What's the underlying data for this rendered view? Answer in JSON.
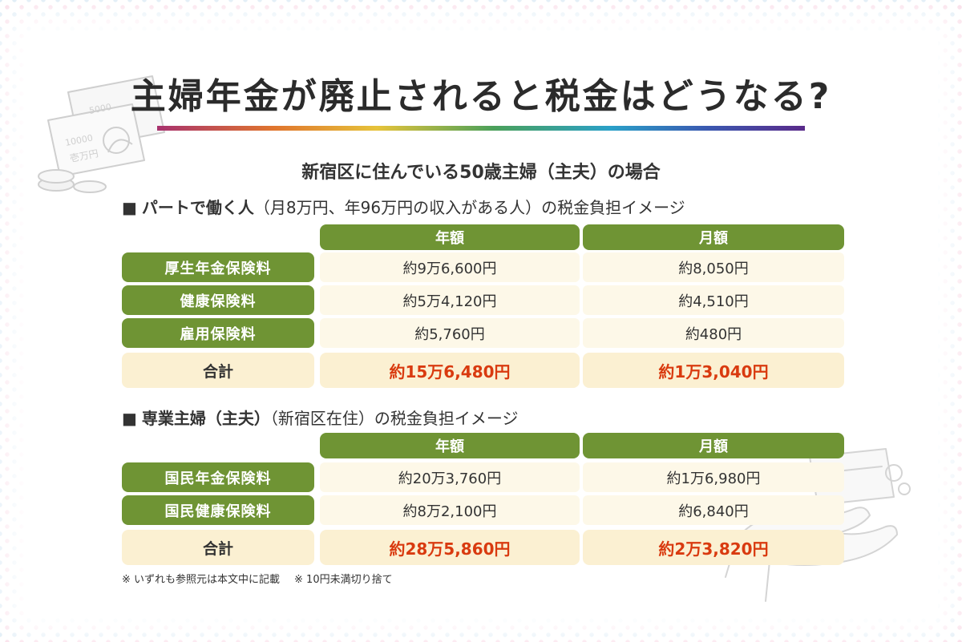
{
  "title": "主婦年金が廃止されると税金はどうなる?",
  "subtitle": "新宿区に住んでいる50歳主婦（主夫）の場合",
  "colors": {
    "green": "#6f9434",
    "cream": "#fdf8e8",
    "total_bg": "#fbf0d2",
    "total_text": "#d93a0f"
  },
  "sections": [
    {
      "marker": "■",
      "heading_bold": "パートで働く人",
      "heading_rest": "（月8万円、年96万円の収入がある人）の税金負担イメージ",
      "col_headers": [
        "年額",
        "月額"
      ],
      "rows": [
        {
          "label": "厚生年金保険料",
          "annual": "約9万6,600円",
          "monthly": "約8,050円"
        },
        {
          "label": "健康保険料",
          "annual": "約5万4,120円",
          "monthly": "約4,510円"
        },
        {
          "label": "雇用保険料",
          "annual": "約5,760円",
          "monthly": "約480円"
        }
      ],
      "total": {
        "label": "合計",
        "annual": "約15万6,480円",
        "monthly": "約1万3,040円"
      }
    },
    {
      "marker": "■",
      "heading_bold": "専業主婦（主夫）",
      "heading_rest": "（新宿区在住）の税金負担イメージ",
      "col_headers": [
        "年額",
        "月額"
      ],
      "rows": [
        {
          "label": "国民年金保険料",
          "annual": "約20万3,760円",
          "monthly": "約1万6,980円"
        },
        {
          "label": "国民健康保険料",
          "annual": "約8万2,100円",
          "monthly": "約6,840円"
        }
      ],
      "total": {
        "label": "合計",
        "annual": "約28万5,860円",
        "monthly": "約2万3,820円"
      }
    }
  ],
  "notes": [
    "※ いずれも参照元は本文中に記載",
    "※ 10円未満切り捨て"
  ],
  "decor": {
    "banknote_labels": [
      "5000",
      "10000",
      "壱万円"
    ],
    "icons": [
      "money-illustration",
      "hand-card-illustration"
    ]
  }
}
